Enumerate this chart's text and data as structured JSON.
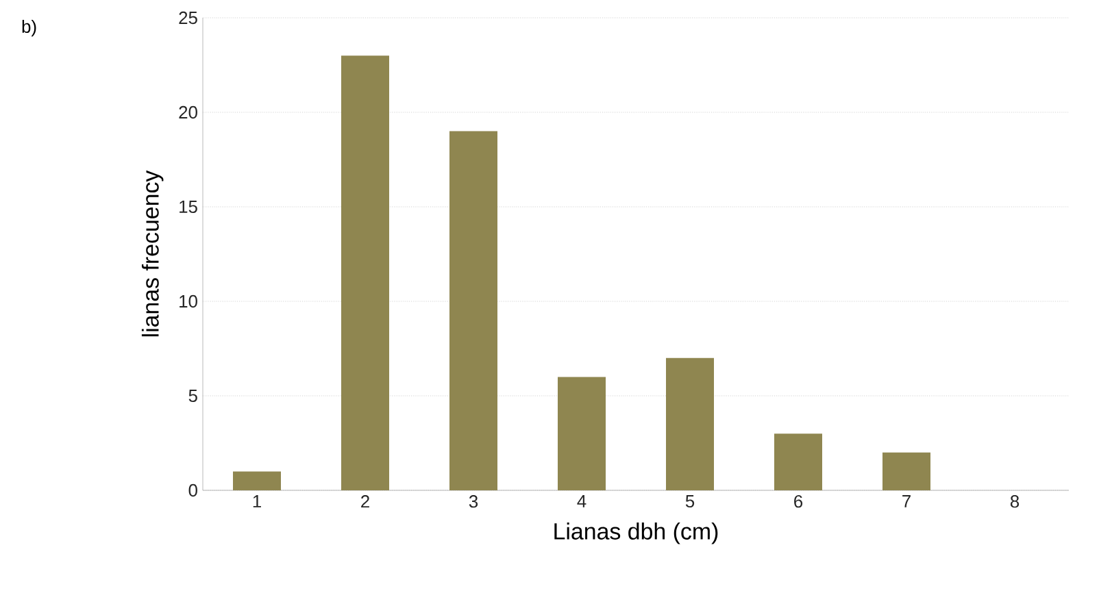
{
  "chart_data": {
    "type": "bar",
    "annotations": [
      "b)"
    ],
    "xlabel": "Lianas dbh  (cm)",
    "ylabel": "lianas frecuency",
    "categories": [
      "1",
      "2",
      "3",
      "4",
      "5",
      "6",
      "7",
      "8"
    ],
    "values": [
      1,
      23,
      19,
      6,
      7,
      3,
      2,
      0
    ],
    "color": "#8f8650",
    "ylim": [
      0,
      25
    ],
    "yticks": [
      0,
      5,
      10,
      15,
      20,
      25
    ],
    "grid": "y"
  }
}
